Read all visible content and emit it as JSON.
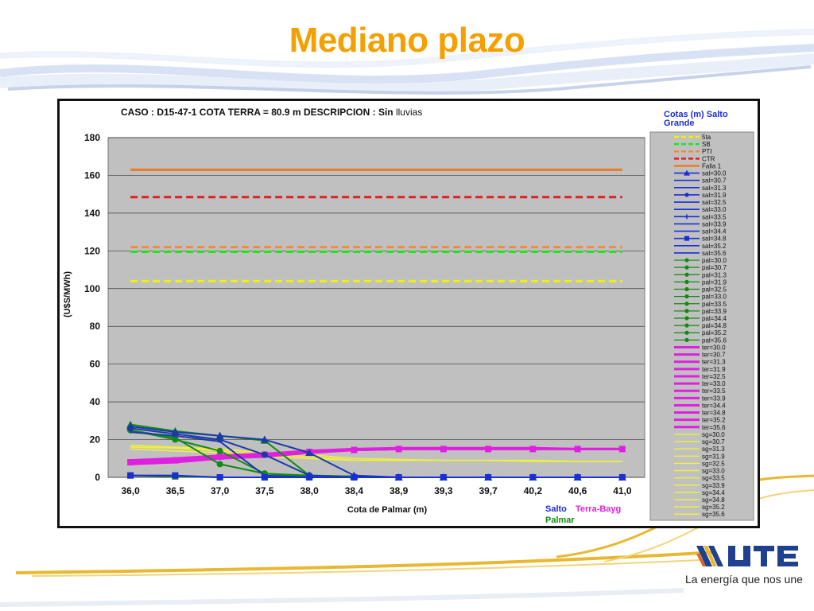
{
  "slide": {
    "title": "Mediano plazo",
    "tagline": "La energía que nos une",
    "colors": {
      "title": "#f4a000",
      "logo_blue": "#1f3f8f"
    }
  },
  "chart_data": {
    "type": "line",
    "header": "CASO : D15-47-1 COTA TERRA = 80.9 m  DESCRIPCION :",
    "header_bold": "Sin",
    "header_tail": " lluvias",
    "xlabel": "Cota de Palmar (m)",
    "ylabel": "(U$S/MWh)",
    "categories": [
      "36,0",
      "36,5",
      "37,0",
      "37,5",
      "38,0",
      "38,4",
      "38,9",
      "39,3",
      "39,7",
      "40,2",
      "40,6",
      "41,0"
    ],
    "ylim": [
      0,
      180
    ],
    "yticks": [
      0,
      20,
      40,
      60,
      80,
      100,
      120,
      140,
      160,
      180
    ],
    "grid": true,
    "legend_title": "Cotas (m) Salto Grande",
    "legend_position": "right",
    "plot_bg": "#c0c0c0",
    "group_labels": [
      {
        "text": "Salto",
        "color": "#1a2ed6"
      },
      {
        "text": "Terra-Bayg",
        "color": "#e020e0"
      },
      {
        "text": "Palmar",
        "color": "#128a12"
      }
    ],
    "hlines": [
      {
        "name": "5ta",
        "value": 104,
        "color": "#f2f200",
        "dash": true
      },
      {
        "name": "SB",
        "value": 119.5,
        "color": "#1ee61e",
        "dash": true
      },
      {
        "name": "PTI",
        "value": 122,
        "color": "#f58a3c",
        "dash": true
      },
      {
        "name": "CTR",
        "value": 148.5,
        "color": "#e02020",
        "dash": true
      },
      {
        "name": "Falla 1",
        "value": 163,
        "color": "#f07a20",
        "dash": false
      }
    ],
    "salto": [
      "sal=30.0",
      "sal=30.7",
      "sal=31.3",
      "sal=31.9",
      "sal=32.5",
      "sal=33.0",
      "sal=33.5",
      "sal=33.9",
      "sal=34.4",
      "sal=34.8",
      "sal=35.2",
      "sal=35.6"
    ],
    "palmar": [
      "pal=30.0",
      "pal=30.7",
      "pal=31.3",
      "pal=31.9",
      "pal=32.5",
      "pal=33.0",
      "pal=33.5",
      "pal=33.9",
      "pal=34.4",
      "pal=34.8",
      "pal=35.2",
      "pal=35.6"
    ],
    "terra": [
      "ter=30.0",
      "ter=30.7",
      "ter=31.3",
      "ter=31.9",
      "ter=32.5",
      "ter=33.0",
      "ter=33.5",
      "ter=33.9",
      "ter=34.4",
      "ter=34.8",
      "ter=35.2",
      "ter=35.6"
    ],
    "sg": [
      "sg=30.0",
      "sg=30.7",
      "sg=31.3",
      "sg=31.9",
      "sg=32.5",
      "sg=33.0",
      "sg=33.5",
      "sg=33.9",
      "sg=34.4",
      "sg=34.8",
      "sg=35.2",
      "sg=35.6"
    ],
    "series": [
      {
        "group": "salto",
        "color": "#1a3aa8",
        "marker": "triangle",
        "values": [
          27,
          24,
          22,
          20,
          13,
          1,
          0,
          0,
          0,
          0,
          0,
          0
        ]
      },
      {
        "group": "salto",
        "color": "#1a3aa8",
        "marker": "circle",
        "values": [
          26,
          23,
          20,
          12,
          1,
          0,
          0,
          0,
          0,
          0,
          0,
          0
        ]
      },
      {
        "group": "salto",
        "color": "#1a3aa8",
        "marker": "none",
        "values": [
          24,
          22,
          19,
          1,
          0,
          0,
          0,
          0,
          0,
          0,
          0,
          0
        ]
      },
      {
        "group": "salto",
        "color": "#1a2ed6",
        "marker": "square",
        "values": [
          1,
          1,
          0,
          0,
          0,
          0,
          0,
          0,
          0,
          0,
          0,
          0
        ]
      },
      {
        "group": "palmar",
        "color": "#128a12",
        "marker": "triangle",
        "values": [
          28,
          24.5,
          22,
          19.5,
          1,
          0.5,
          0,
          0,
          0,
          0,
          0,
          0
        ]
      },
      {
        "group": "palmar",
        "color": "#128a12",
        "marker": "circle",
        "values": [
          25,
          21,
          7,
          2,
          1,
          0.5,
          0,
          0,
          0,
          0,
          0,
          0
        ]
      },
      {
        "group": "palmar",
        "color": "#128a12",
        "marker": "circle",
        "values": [
          25,
          20,
          14,
          2,
          0.5,
          0,
          0,
          0,
          0,
          0,
          0,
          0
        ]
      },
      {
        "group": "palmar",
        "color": "#128a12",
        "marker": "square",
        "values": [
          1,
          0.5,
          0,
          0,
          0,
          0,
          0,
          0,
          0,
          0,
          0,
          0
        ]
      },
      {
        "group": "terra",
        "color": "#e020e0",
        "marker": "square",
        "values": [
          8,
          9,
          11,
          12,
          13.5,
          14.5,
          15,
          15,
          15,
          15,
          15,
          15
        ]
      },
      {
        "group": "terra",
        "color": "#e020e0",
        "marker": "none",
        "values": [
          9,
          10,
          11.5,
          12.5,
          14,
          15,
          15.5,
          15.5,
          15.5,
          15.5,
          15,
          15
        ]
      },
      {
        "group": "terra",
        "color": "#e020e0",
        "marker": "none",
        "values": [
          7,
          8,
          10,
          11,
          13,
          14.5,
          15,
          15,
          15,
          15,
          15,
          15
        ]
      },
      {
        "group": "sg",
        "color": "#f0f040",
        "marker": "none",
        "values": [
          16,
          15.5,
          14,
          12,
          11,
          9,
          9,
          9,
          9,
          8.5,
          8.5,
          8.5
        ]
      },
      {
        "group": "sg",
        "color": "#f0f040",
        "marker": "none",
        "values": [
          17,
          16,
          15,
          13,
          12,
          10,
          9.5,
          9,
          9,
          9,
          8.5,
          8.5
        ]
      },
      {
        "group": "sg",
        "color": "#f0f040",
        "marker": "none",
        "values": [
          15,
          14,
          13,
          11,
          10,
          9,
          9,
          9,
          9,
          8.5,
          8.5,
          8.5
        ]
      }
    ]
  }
}
